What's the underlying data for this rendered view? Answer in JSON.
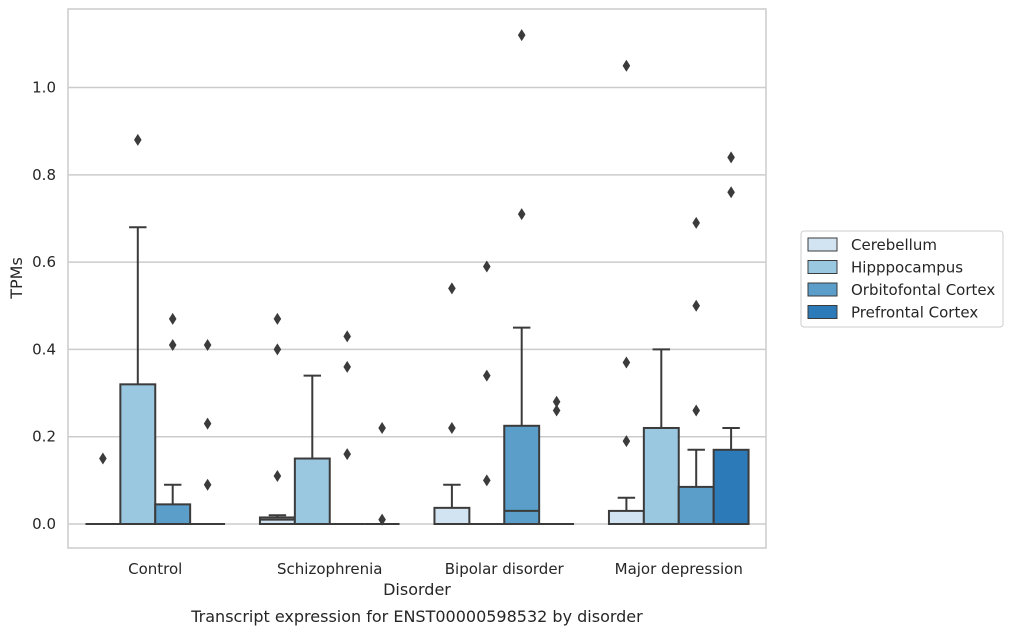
{
  "chart_data": {
    "type": "box",
    "xlabel": "Disorder",
    "ylabel": "TPMs",
    "caption": "Transcript expression for ENST00000598532 by disorder",
    "categories": [
      "Control",
      "Schizophrenia",
      "Bipolar disorder",
      "Major depression"
    ],
    "ylim": [
      -0.055,
      1.18
    ],
    "yticks": [
      "0.0",
      "0.2",
      "0.4",
      "0.6",
      "0.8",
      "1.0"
    ],
    "grid": "horizontal",
    "legend_position": "right",
    "series": [
      {
        "name": "Cerebellum",
        "color": "#d2e3f2",
        "boxes": [
          {
            "q1": 0,
            "median": 0,
            "q3": 0,
            "whisker_low": 0,
            "whisker_high": 0,
            "outliers": [
              0.15
            ]
          },
          {
            "q1": 0,
            "median": 0.01,
            "q3": 0.015,
            "whisker_low": 0,
            "whisker_high": 0.02,
            "outliers": [
              0.47,
              0.4,
              0.11
            ]
          },
          {
            "q1": 0,
            "median": 0,
            "q3": 0.037,
            "whisker_low": 0,
            "whisker_high": 0.09,
            "outliers": [
              0.54,
              0.22
            ]
          },
          {
            "q1": 0,
            "median": 0,
            "q3": 0.03,
            "whisker_low": 0,
            "whisker_high": 0.06,
            "outliers": [
              1.05,
              0.37,
              0.19
            ]
          }
        ]
      },
      {
        "name": "Hipppocampus",
        "color": "#9ac8e0",
        "boxes": [
          {
            "q1": 0,
            "median": 0,
            "q3": 0.32,
            "whisker_low": 0,
            "whisker_high": 0.68,
            "outliers": [
              0.88
            ]
          },
          {
            "q1": 0,
            "median": 0,
            "q3": 0.15,
            "whisker_low": 0,
            "whisker_high": 0.34,
            "outliers": []
          },
          {
            "q1": 0,
            "median": 0,
            "q3": 0,
            "whisker_low": 0,
            "whisker_high": 0,
            "outliers": [
              0.59,
              0.34,
              0.1
            ]
          },
          {
            "q1": 0,
            "median": 0,
            "q3": 0.22,
            "whisker_low": 0,
            "whisker_high": 0.4,
            "outliers": []
          }
        ]
      },
      {
        "name": "Orbitofontal Cortex",
        "color": "#5b9ec9",
        "boxes": [
          {
            "q1": 0,
            "median": 0,
            "q3": 0.045,
            "whisker_low": 0,
            "whisker_high": 0.09,
            "outliers": [
              0.47,
              0.41
            ]
          },
          {
            "q1": 0,
            "median": 0,
            "q3": 0,
            "whisker_low": 0,
            "whisker_high": 0,
            "outliers": [
              0.43,
              0.36,
              0.16
            ]
          },
          {
            "q1": 0,
            "median": 0.03,
            "q3": 0.225,
            "whisker_low": 0,
            "whisker_high": 0.45,
            "outliers": [
              1.12,
              0.71
            ]
          },
          {
            "q1": 0,
            "median": 0,
            "q3": 0.085,
            "whisker_low": 0,
            "whisker_high": 0.17,
            "outliers": [
              0.69,
              0.5,
              0.26
            ]
          }
        ]
      },
      {
        "name": "Prefrontal Cortex",
        "color": "#2d7ab9",
        "boxes": [
          {
            "q1": 0,
            "median": 0,
            "q3": 0,
            "whisker_low": 0,
            "whisker_high": 0,
            "outliers": [
              0.41,
              0.23,
              0.09
            ]
          },
          {
            "q1": 0,
            "median": 0,
            "q3": 0,
            "whisker_low": 0,
            "whisker_high": 0,
            "outliers": [
              0.22,
              0.01
            ]
          },
          {
            "q1": 0,
            "median": 0,
            "q3": 0,
            "whisker_low": 0,
            "whisker_high": 0,
            "outliers": [
              0.28,
              0.26
            ]
          },
          {
            "q1": 0,
            "median": 0,
            "q3": 0.17,
            "whisker_low": 0,
            "whisker_high": 0.22,
            "outliers": [
              0.84,
              0.76
            ]
          }
        ]
      }
    ]
  }
}
